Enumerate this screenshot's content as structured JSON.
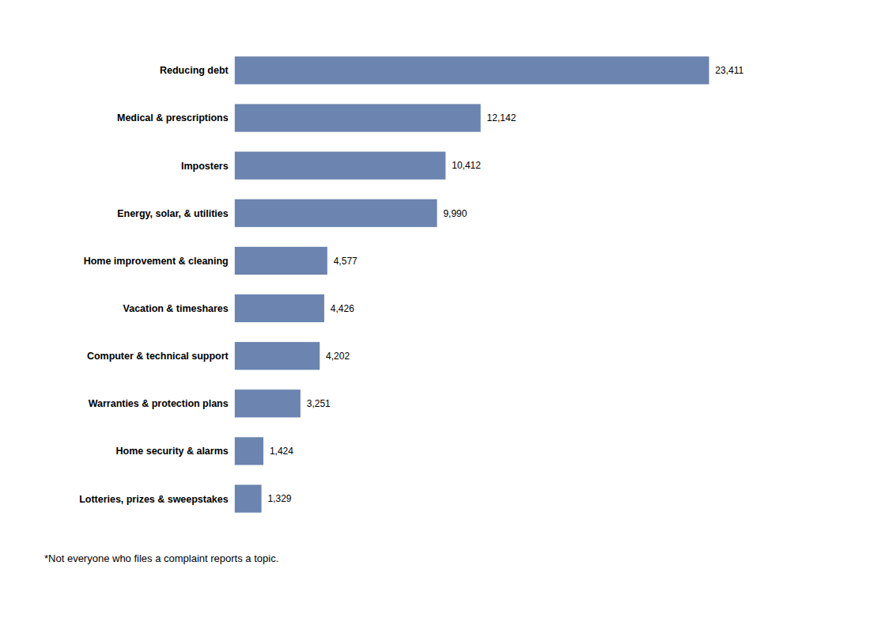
{
  "chart_data": {
    "type": "bar",
    "orientation": "horizontal",
    "categories": [
      "Lotteries, prizes & sweepstakes",
      "Home security & alarms",
      "Warranties & protection plans",
      "Computer & technical support",
      "Vacation & timeshares",
      "Home improvement & cleaning",
      "Energy, solar, & utilities",
      "Imposters",
      "Medical & prescriptions",
      "Reducing debt"
    ],
    "values": [
      1329,
      1424,
      3251,
      4202,
      4426,
      4577,
      9990,
      10412,
      12142,
      23411
    ],
    "value_labels": [
      "1,329",
      "1,424",
      "3,251",
      "4,202",
      "4,426",
      "4,577",
      "9,990",
      "10,412",
      "12,142",
      "23,411"
    ],
    "data_labels": true,
    "color": "#6b84b0",
    "xlim": [
      0,
      27000
    ],
    "tick_labels": "y",
    "grid": false,
    "annotations": [
      "*Not everyone who files a complaint reports a topic."
    ]
  }
}
